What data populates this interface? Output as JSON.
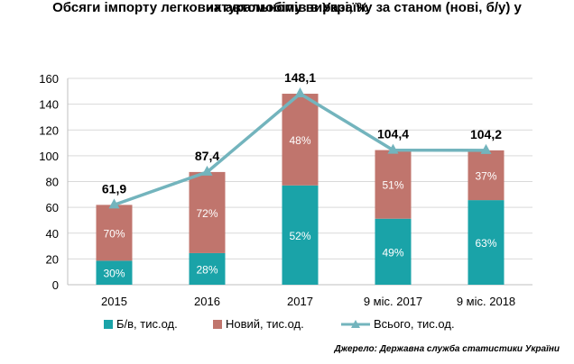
{
  "title_line1": "Обсяги імпорту легкових автомобілів  в Україну  за станом (нові,  б/у) у",
  "title_line2": "натуральному  виразі, %",
  "source": "Джерело: Державна служба статистики України",
  "colors": {
    "used": "#1aa3a8",
    "new": "#c0756d",
    "total": "#73b4bd",
    "grid": "#d9d9d9"
  },
  "chart_data": {
    "type": "bar",
    "stacked": true,
    "categories": [
      "2015",
      "2016",
      "2017",
      "9 міс. 2017",
      "9 міс. 2018"
    ],
    "ylim": [
      0,
      160
    ],
    "yticks": [
      0,
      20,
      40,
      60,
      80,
      100,
      120,
      140,
      160
    ],
    "ytick_labels": [
      "0",
      "20",
      "40",
      "60",
      "80",
      "100",
      "120",
      "140",
      "160"
    ],
    "grid": true,
    "series": [
      {
        "name": "Б/в, тис.од.",
        "kind": "bar",
        "values": [
          18.6,
          24.5,
          77.0,
          51.2,
          65.6
        ],
        "labels": [
          "30%",
          "28%",
          "52%",
          "49%",
          "63%"
        ]
      },
      {
        "name": "Новий, тис.од.",
        "kind": "bar",
        "values": [
          43.3,
          62.9,
          71.1,
          53.2,
          38.6
        ],
        "labels": [
          "70%",
          "72%",
          "48%",
          "51%",
          "37%"
        ]
      },
      {
        "name": "Всього, тис.од.",
        "kind": "line",
        "values": [
          61.9,
          87.4,
          148.1,
          104.4,
          104.2
        ],
        "labels": [
          "61,9",
          "87,4",
          "148,1",
          "104,4",
          "104,2"
        ]
      }
    ],
    "legend_position": "bottom"
  }
}
